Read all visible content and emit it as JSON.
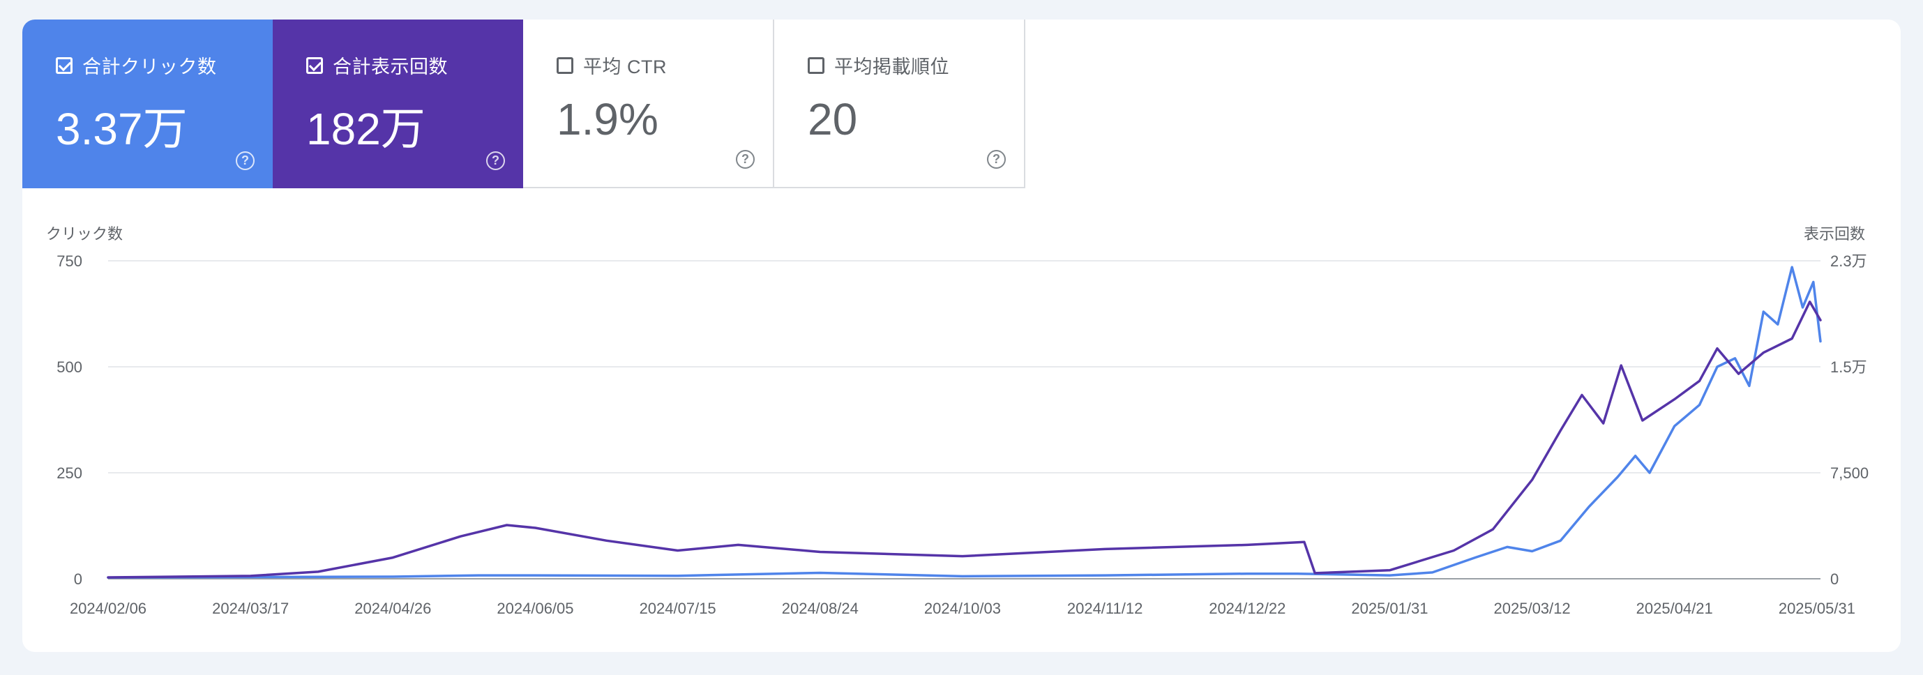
{
  "tiles": [
    {
      "label": "合計クリック数",
      "value": "3.37万",
      "checked": true,
      "color": "#4f84ea"
    },
    {
      "label": "合計表示回数",
      "value": "182万",
      "checked": true,
      "color": "#5534a8"
    },
    {
      "label": "平均 CTR",
      "value": "1.9%",
      "checked": false
    },
    {
      "label": "平均掲載順位",
      "value": "20",
      "checked": false
    }
  ],
  "chart_data": {
    "type": "line",
    "left_axis": {
      "label": "クリック数",
      "ticks": [
        "750",
        "500",
        "250",
        "0"
      ],
      "range": [
        0,
        750
      ]
    },
    "right_axis": {
      "label": "表示回数",
      "ticks": [
        "2.3万",
        "1.5万",
        "7,500",
        "0"
      ],
      "range": [
        0,
        22500
      ]
    },
    "x_ticks": [
      "2024/02/06",
      "2024/03/17",
      "2024/04/26",
      "2024/06/05",
      "2024/07/15",
      "2024/08/24",
      "2024/10/03",
      "2024/11/12",
      "2024/12/22",
      "2025/01/31",
      "2025/03/12",
      "2025/04/21",
      "2025/05/31"
    ],
    "x_range": [
      "2024/02/06",
      "2025/06/01"
    ],
    "grid": true,
    "series": [
      {
        "color": "#4f84ea",
        "axis": "left",
        "points": [
          [
            "2024/02/06",
            3
          ],
          [
            "2024/03/17",
            4
          ],
          [
            "2024/04/26",
            5
          ],
          [
            "2024/05/20",
            8
          ],
          [
            "2024/06/05",
            8
          ],
          [
            "2024/07/15",
            7
          ],
          [
            "2024/08/24",
            14
          ],
          [
            "2024/10/03",
            6
          ],
          [
            "2024/11/12",
            8
          ],
          [
            "2024/12/22",
            12
          ],
          [
            "2025/01/05",
            12
          ],
          [
            "2025/01/31",
            8
          ],
          [
            "2025/02/12",
            15
          ],
          [
            "2025/02/24",
            50
          ],
          [
            "2025/03/05",
            75
          ],
          [
            "2025/03/12",
            65
          ],
          [
            "2025/03/20",
            90
          ],
          [
            "2025/03/28",
            170
          ],
          [
            "2025/04/05",
            240
          ],
          [
            "2025/04/10",
            290
          ],
          [
            "2025/04/14",
            250
          ],
          [
            "2025/04/21",
            360
          ],
          [
            "2025/04/28",
            410
          ],
          [
            "2025/05/03",
            500
          ],
          [
            "2025/05/08",
            520
          ],
          [
            "2025/05/12",
            455
          ],
          [
            "2025/05/16",
            630
          ],
          [
            "2025/05/20",
            600
          ],
          [
            "2025/05/24",
            735
          ],
          [
            "2025/05/27",
            640
          ],
          [
            "2025/05/30",
            700
          ],
          [
            "2025/06/01",
            560
          ]
        ]
      },
      {
        "color": "#5534a8",
        "axis": "right",
        "points": [
          [
            "2024/02/06",
            100
          ],
          [
            "2024/03/17",
            200
          ],
          [
            "2024/04/05",
            500
          ],
          [
            "2024/04/26",
            1500
          ],
          [
            "2024/05/15",
            3000
          ],
          [
            "2024/05/28",
            3800
          ],
          [
            "2024/06/05",
            3600
          ],
          [
            "2024/06/25",
            2700
          ],
          [
            "2024/07/15",
            2000
          ],
          [
            "2024/08/01",
            2400
          ],
          [
            "2024/08/24",
            1900
          ],
          [
            "2024/10/03",
            1600
          ],
          [
            "2024/11/12",
            2100
          ],
          [
            "2024/12/22",
            2400
          ],
          [
            "2025/01/07",
            2600
          ],
          [
            "2025/01/10",
            400
          ],
          [
            "2025/01/31",
            600
          ],
          [
            "2025/02/18",
            2000
          ],
          [
            "2025/03/01",
            3500
          ],
          [
            "2025/03/12",
            7000
          ],
          [
            "2025/03/20",
            10500
          ],
          [
            "2025/03/26",
            13000
          ],
          [
            "2025/04/01",
            11000
          ],
          [
            "2025/04/06",
            15100
          ],
          [
            "2025/04/12",
            11200
          ],
          [
            "2025/04/21",
            12700
          ],
          [
            "2025/04/28",
            14000
          ],
          [
            "2025/05/03",
            16300
          ],
          [
            "2025/05/09",
            14500
          ],
          [
            "2025/05/16",
            16000
          ],
          [
            "2025/05/24",
            17000
          ],
          [
            "2025/05/29",
            19600
          ],
          [
            "2025/06/01",
            18300
          ]
        ]
      }
    ]
  }
}
